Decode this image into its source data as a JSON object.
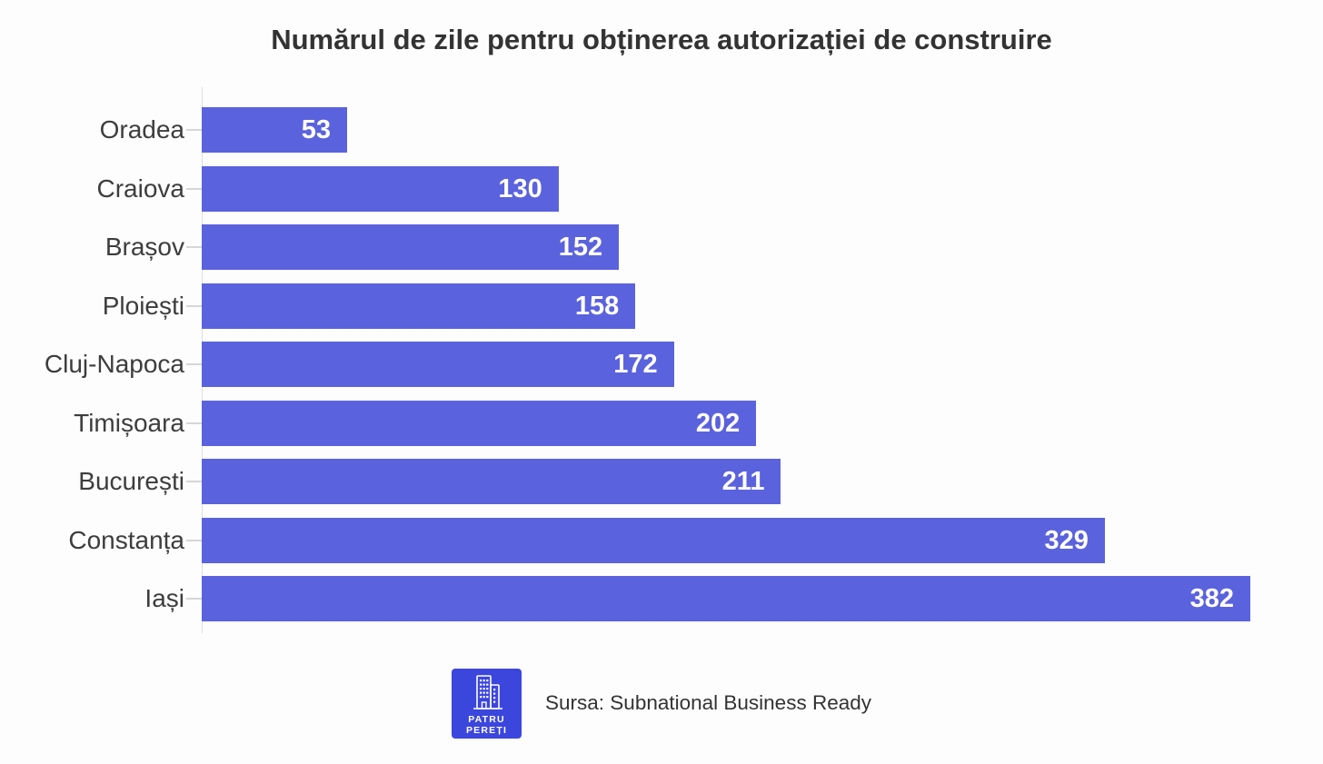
{
  "chart_data": {
    "type": "bar",
    "orientation": "horizontal",
    "title": "Numărul de zile pentru obținerea autorizației de construire",
    "categories": [
      "Oradea",
      "Craiova",
      "Brașov",
      "Ploiești",
      "Cluj-Napoca",
      "Timișoara",
      "București",
      "Constanța",
      "Iași"
    ],
    "values": [
      53,
      130,
      152,
      158,
      172,
      202,
      211,
      329,
      382
    ],
    "xlabel": "",
    "ylabel": "",
    "xlim": [
      0,
      382
    ],
    "grid": false,
    "legend": false,
    "value_labels_position": "inside-end",
    "bar_color": "#5b62dd",
    "value_label_color": "#ffffff"
  },
  "footer": {
    "source": "Sursa: Subnational Business Ready",
    "logo_line1": "PATRU",
    "logo_line2": "PEREȚI",
    "logo_bg_color": "#3b46dd"
  },
  "colors": {
    "background": "#fdfdfd",
    "title": "#333333",
    "category_label": "#3d3d3d",
    "axis_line": "#dedede",
    "tick": "#d6d6d6"
  }
}
